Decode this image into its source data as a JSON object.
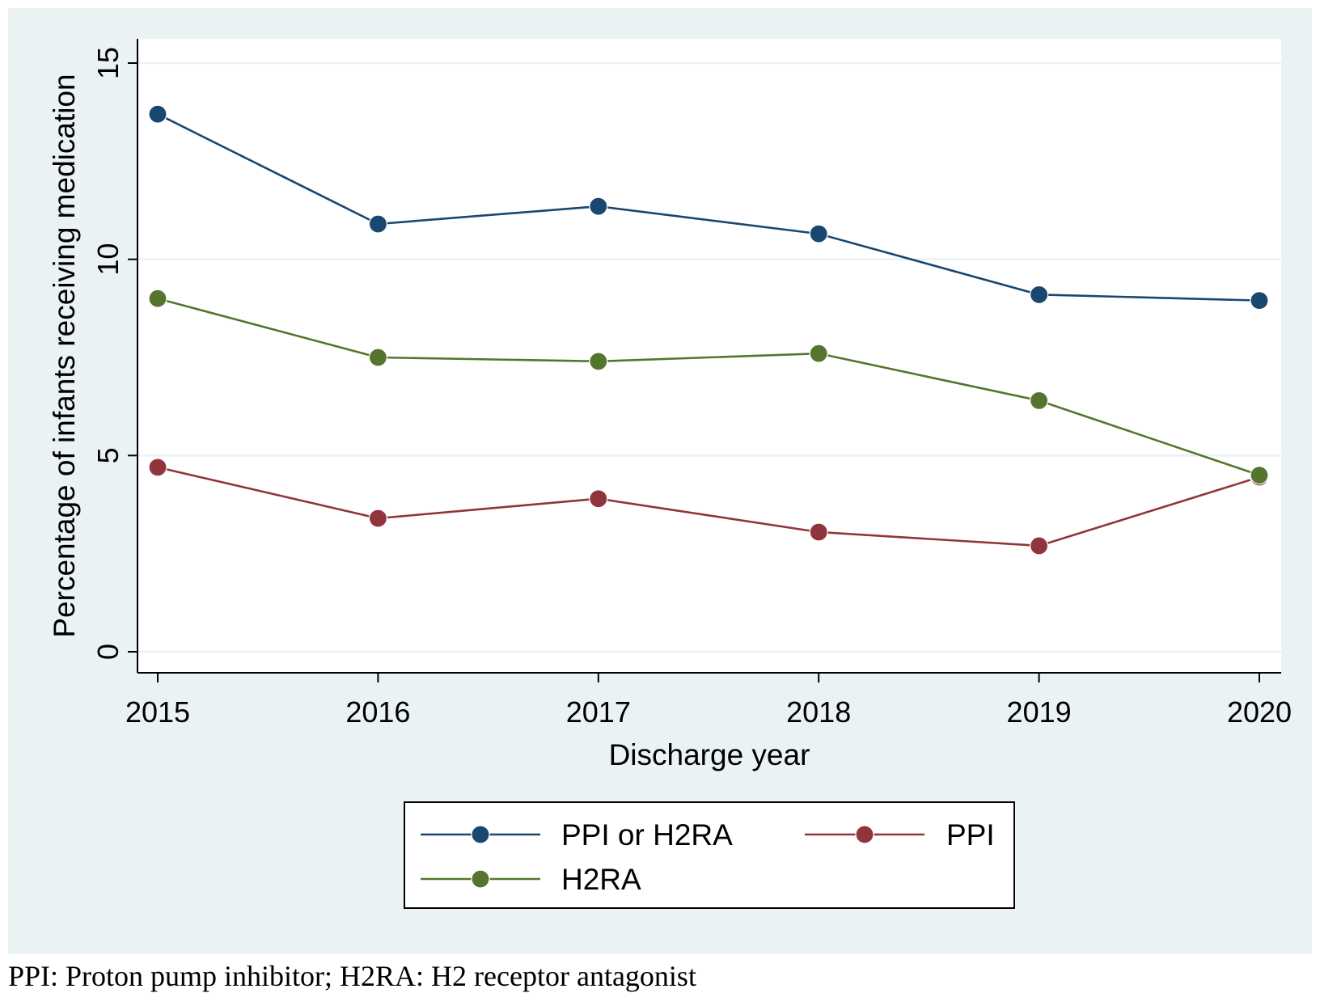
{
  "chart_data": {
    "type": "line",
    "title": "",
    "xlabel": "Discharge year",
    "ylabel": "Percentage of infants receiving medication",
    "x": [
      2015,
      2016,
      2017,
      2018,
      2019,
      2020
    ],
    "x_tick_labels": [
      "2015",
      "2016",
      "2017",
      "2018",
      "2019",
      "2020"
    ],
    "ylim": [
      0,
      15
    ],
    "y_ticks": [
      0,
      5,
      10,
      15
    ],
    "y_tick_labels": [
      "0",
      "5",
      "10",
      "15"
    ],
    "grid": true,
    "legend_position": "bottom",
    "series": [
      {
        "name": "PPI or H2RA",
        "color": "#1a476f",
        "values": [
          13.7,
          10.9,
          11.35,
          10.65,
          9.1,
          8.95
        ]
      },
      {
        "name": "PPI",
        "color": "#90353b",
        "values": [
          4.7,
          3.4,
          3.9,
          3.05,
          2.7,
          4.45
        ]
      },
      {
        "name": "H2RA",
        "color": "#55752f",
        "values": [
          9.0,
          7.5,
          7.4,
          7.6,
          6.4,
          4.5
        ]
      }
    ],
    "colors": {
      "background": "#eaf2f3",
      "plot_area": "#ffffff",
      "grid": "#eaf2f3"
    }
  },
  "caption": "PPI: Proton pump inhibitor; H2RA: H2 receptor antagonist"
}
